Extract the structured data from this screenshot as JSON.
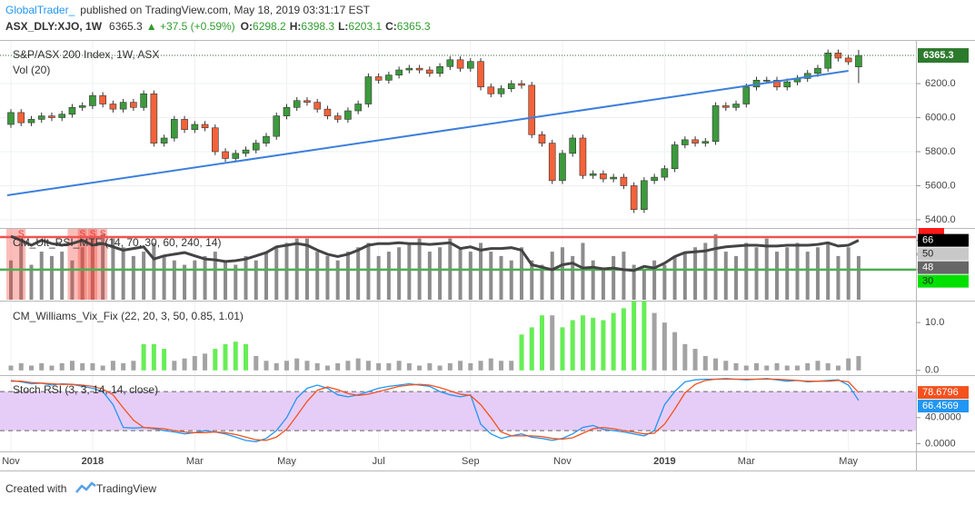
{
  "header": {
    "author": "GlobalTrader_",
    "published": "published on TradingView.com, May 18, 2019 03:31:17 EST",
    "symbol": "ASX_DLY:XJO, 1W",
    "change": "▲ +37.5 (+0.59%)",
    "ohlc_labels": [
      "O:",
      "H:",
      "L:",
      "C:"
    ]
  },
  "chart_data": [
    {
      "type": "candlestick",
      "title": "S&P/ASX 200 Index, 1W, ASX",
      "up_color": "#3c9a3c",
      "down_color": "#f4623a",
      "ylim": [
        5357,
        6451
      ],
      "yticks": [
        {
          "value": 5400,
          "label": "5400.0"
        },
        {
          "value": 5600,
          "label": "5600.0"
        },
        {
          "value": 5800,
          "label": "5800.0"
        },
        {
          "value": 6000,
          "label": "6000.0"
        },
        {
          "value": 6200,
          "label": "6200.0"
        }
      ],
      "grid": true,
      "open": [
        5960,
        6030,
        5970,
        5990,
        6010,
        6000,
        6020,
        6060,
        6070,
        6130,
        6080,
        6050,
        6090,
        6060,
        6140,
        5850,
        5880,
        5990,
        5930,
        5960,
        5940,
        5800,
        5760,
        5790,
        5810,
        5850,
        5890,
        6010,
        6060,
        6100,
        6090,
        6050,
        6010,
        5990,
        6040,
        6080,
        6240,
        6220,
        6250,
        6280,
        6290,
        6280,
        6260,
        6300,
        6340,
        6290,
        6330,
        6180,
        6140,
        6170,
        6200,
        6190,
        5900,
        5850,
        5630,
        5790,
        5880,
        5660,
        5670,
        5640,
        5650,
        5600,
        5460,
        5630,
        5650,
        5700,
        5840,
        5870,
        5850,
        5860,
        6070,
        6060,
        6080,
        6180,
        6220,
        6220,
        6180,
        6210,
        6230,
        6260,
        6290,
        6380,
        6350,
        6298.2
      ],
      "high": [
        6050,
        6050,
        6010,
        6030,
        6030,
        6040,
        6080,
        6090,
        6150,
        6150,
        6100,
        6110,
        6110,
        6160,
        6160,
        5900,
        6010,
        6010,
        5980,
        5980,
        5960,
        5820,
        5810,
        5830,
        5870,
        5910,
        6030,
        6080,
        6120,
        6120,
        6110,
        6070,
        6030,
        6060,
        6100,
        6260,
        6260,
        6270,
        6300,
        6310,
        6310,
        6300,
        6320,
        6360,
        6360,
        6350,
        6350,
        6200,
        6190,
        6220,
        6220,
        6210,
        5920,
        5870,
        5810,
        5900,
        5900,
        5690,
        5690,
        5670,
        5670,
        5620,
        5650,
        5670,
        5720,
        5860,
        5890,
        5890,
        5880,
        6090,
        6090,
        6100,
        6200,
        6240,
        6240,
        6240,
        6230,
        6250,
        6280,
        6310,
        6400,
        6400,
        6370,
        6398.3
      ],
      "low": [
        5940,
        5950,
        5950,
        5970,
        5980,
        5980,
        6000,
        6040,
        6050,
        6060,
        6030,
        6030,
        6040,
        6040,
        5830,
        5830,
        5860,
        5910,
        5910,
        5920,
        5780,
        5740,
        5740,
        5770,
        5790,
        5830,
        5870,
        5990,
        6040,
        6070,
        6030,
        5990,
        5970,
        5970,
        6020,
        6060,
        6200,
        6200,
        6230,
        6260,
        6260,
        6240,
        6240,
        6280,
        6270,
        6270,
        6160,
        6120,
        6120,
        6150,
        6170,
        5880,
        5830,
        5610,
        5610,
        5770,
        5640,
        5640,
        5620,
        5620,
        5580,
        5440,
        5440,
        5610,
        5630,
        5680,
        5820,
        5830,
        5830,
        5840,
        6040,
        6040,
        6060,
        6160,
        6200,
        6160,
        6160,
        6190,
        6210,
        6240,
        6270,
        6330,
        6310,
        6203.1
      ],
      "close": [
        6030,
        5970,
        5990,
        6010,
        6000,
        6020,
        6060,
        6070,
        6130,
        6080,
        6050,
        6090,
        6060,
        6140,
        5850,
        5880,
        5990,
        5930,
        5960,
        5940,
        5800,
        5760,
        5790,
        5810,
        5850,
        5890,
        6010,
        6060,
        6100,
        6090,
        6050,
        6010,
        5990,
        6040,
        6080,
        6240,
        6220,
        6250,
        6280,
        6290,
        6280,
        6260,
        6300,
        6340,
        6290,
        6330,
        6180,
        6140,
        6170,
        6200,
        6190,
        5900,
        5850,
        5630,
        5790,
        5880,
        5660,
        5670,
        5640,
        5650,
        5600,
        5460,
        5630,
        5650,
        5700,
        5840,
        5870,
        5850,
        5860,
        6070,
        6060,
        6080,
        6180,
        6220,
        6220,
        6180,
        6210,
        6230,
        6260,
        6290,
        6380,
        6350,
        6327.8,
        6365.3
      ],
      "trendline": {
        "color": "#3d7fdc",
        "x": [
          0,
          82
        ],
        "values": [
          5544,
          6275
        ]
      },
      "volume": {
        "title": "Vol (20)",
        "color": "#8c8c8c",
        "ylim": [
          0,
          80
        ],
        "values": [
          45,
          70,
          40,
          55,
          50,
          55,
          45,
          60,
          70,
          75,
          70,
          60,
          50,
          55,
          65,
          50,
          45,
          40,
          45,
          50,
          55,
          45,
          40,
          50,
          45,
          55,
          60,
          65,
          70,
          70,
          55,
          50,
          45,
          55,
          60,
          65,
          50,
          55,
          60,
          65,
          70,
          55,
          60,
          70,
          60,
          55,
          65,
          55,
          50,
          45,
          60,
          45,
          40,
          55,
          60,
          50,
          65,
          45,
          35,
          50,
          55,
          40,
          35,
          45,
          40,
          50,
          55,
          60,
          65,
          75,
          55,
          50,
          65,
          60,
          70,
          55,
          60,
          65,
          55,
          60,
          65,
          50,
          60,
          50
        ]
      }
    },
    {
      "type": "line",
      "title": "CM_Ult_RSI_MTF (14, 70, 30, 60, 240, 14)",
      "ylim": [
        -7,
        79
      ],
      "bands": [
        {
          "value": 70,
          "color": "#ef5350"
        },
        {
          "value": 30,
          "color": "#4caf50"
        }
      ],
      "signals": {
        "label": "S",
        "x": [
          1,
          7,
          8,
          9
        ]
      },
      "series": [
        {
          "color": "#444444",
          "values": [
            71,
            66,
            60,
            66,
            62,
            60,
            62,
            66,
            60,
            62,
            58,
            54,
            56,
            58,
            43,
            47,
            49,
            51,
            47,
            43,
            42,
            40,
            41,
            43,
            47,
            51,
            58,
            60,
            62,
            60,
            54,
            49,
            46,
            49,
            54,
            60,
            62,
            62,
            63,
            62,
            62,
            61,
            62,
            63,
            56,
            58,
            54,
            56,
            56,
            57,
            54,
            36,
            33,
            30,
            36,
            38,
            32,
            33,
            31,
            32,
            30,
            29,
            34,
            32,
            38,
            46,
            51,
            52,
            53,
            56,
            58,
            59,
            60,
            60,
            59,
            59,
            60,
            60,
            60,
            61,
            63,
            59,
            60,
            66
          ]
        }
      ],
      "yticks": [
        66,
        50,
        48,
        30
      ],
      "ytick_colors": [
        "#000000",
        "#c8c8c8",
        "#666666",
        "#00e000"
      ],
      "ytick_text_colors": [
        "#ffffff",
        "#222222",
        "#ffffff",
        "#222222"
      ]
    },
    {
      "type": "bar",
      "title": "CM_Williams_Vix_Fix (22, 20, 3, 50, 0.85, 1.01)",
      "ylim": [
        -0.8,
        14.2
      ],
      "yticks": [
        {
          "value": 0,
          "label": "0.0"
        },
        {
          "value": 10,
          "label": "10.0"
        }
      ],
      "color": "#a3a3a3",
      "highlight_color": "#66ee55",
      "highlight": [
        13,
        14,
        15,
        20,
        21,
        22,
        23,
        50,
        51,
        52,
        54,
        55,
        56,
        57,
        58,
        59,
        60,
        61,
        62
      ],
      "values": [
        1,
        1.5,
        1,
        1.5,
        1,
        1.5,
        2,
        1.5,
        1.5,
        1,
        2,
        1.5,
        2,
        5.5,
        5.5,
        4.5,
        2,
        2.5,
        3,
        3.5,
        4.5,
        5.5,
        6,
        5.5,
        3,
        2,
        1.5,
        2,
        2.5,
        2,
        1.5,
        1,
        1.5,
        2,
        2.5,
        2,
        1.5,
        1.5,
        2,
        1.5,
        1,
        1.5,
        1,
        1.5,
        2,
        1.5,
        2,
        2.5,
        2,
        2,
        7.5,
        9,
        11.5,
        11.5,
        9,
        10.5,
        11.5,
        11,
        10.5,
        12,
        13,
        14.5,
        14.5,
        12,
        10,
        8,
        5.5,
        4.5,
        3,
        2.5,
        2,
        1.5,
        1,
        1.5,
        1,
        1.5,
        1,
        1,
        1.5,
        2,
        1.5,
        1,
        2.5,
        3
      ]
    },
    {
      "type": "line",
      "title": "Stoch RSI (3, 3, 14, 14, close)",
      "ylim": [
        -11.9,
        102.5
      ],
      "yticks": [
        {
          "value": 0,
          "label": "0.0000"
        },
        {
          "value": 40,
          "label": "40.0000"
        }
      ],
      "bands": [
        80,
        20
      ],
      "band_fill": "#e6cdf7",
      "categories": [
        "Nov",
        null,
        null,
        null,
        null,
        null,
        null,
        null,
        "2018",
        null,
        null,
        null,
        null,
        null,
        null,
        null,
        null,
        null,
        "Mar",
        null,
        null,
        null,
        null,
        null,
        null,
        null,
        null,
        "May",
        null,
        null,
        null,
        null,
        null,
        null,
        null,
        null,
        "Jul",
        null,
        null,
        null,
        null,
        null,
        null,
        null,
        null,
        "Sep",
        null,
        null,
        null,
        null,
        null,
        null,
        null,
        null,
        "Nov",
        null,
        null,
        null,
        null,
        null,
        null,
        null,
        null,
        null,
        "2019",
        null,
        null,
        null,
        null,
        null,
        null,
        null,
        "Mar",
        null,
        null,
        null,
        null,
        null,
        null,
        null,
        null,
        null,
        "May",
        null
      ],
      "series": [
        {
          "color": "#2196f3",
          "values": [
            97,
            95,
            92,
            93,
            90,
            92,
            91,
            88,
            85,
            80,
            60,
            25,
            24,
            25,
            23,
            20,
            18,
            15,
            17,
            20,
            18,
            15,
            10,
            5,
            3,
            8,
            20,
            40,
            70,
            85,
            90,
            85,
            75,
            72,
            75,
            80,
            85,
            88,
            90,
            92,
            90,
            88,
            80,
            75,
            72,
            75,
            30,
            15,
            8,
            12,
            15,
            10,
            8,
            5,
            8,
            15,
            25,
            28,
            22,
            20,
            18,
            15,
            12,
            20,
            60,
            80,
            95,
            98,
            99,
            99,
            100,
            99,
            98,
            99,
            100,
            98,
            96,
            97,
            95,
            96,
            97,
            98,
            90,
            66.4569
          ]
        },
        {
          "color": "#f4511e",
          "values": [
            96,
            96,
            94,
            93,
            92,
            91,
            91,
            90,
            88,
            84,
            75,
            55,
            36,
            25,
            24,
            23,
            20,
            18,
            17,
            17,
            18,
            17,
            14,
            10,
            6,
            5,
            10,
            22,
            43,
            65,
            82,
            87,
            83,
            77,
            74,
            76,
            80,
            84,
            88,
            90,
            91,
            90,
            86,
            81,
            76,
            74,
            60,
            40,
            18,
            12,
            12,
            12,
            11,
            8,
            7,
            9,
            16,
            23,
            25,
            23,
            20,
            18,
            15,
            16,
            30,
            53,
            78,
            91,
            97,
            99,
            99,
            99,
            99,
            99,
            99,
            99,
            98,
            97,
            96,
            96,
            96,
            97,
            95,
            78.6796
          ]
        }
      ]
    }
  ],
  "footer": {
    "created": "Created with",
    "brand": "TradingView"
  }
}
